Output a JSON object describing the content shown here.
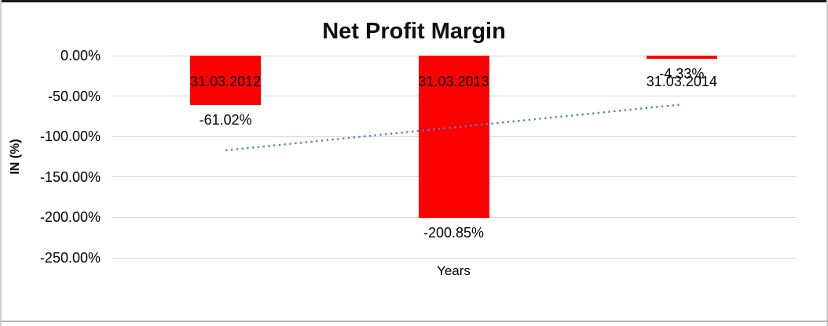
{
  "chart_data": {
    "type": "bar",
    "title": "Net Profit Margin",
    "xlabel": "Years",
    "ylabel": "IN (%)",
    "categories": [
      "31.03.2012",
      "31.03.2013",
      "31.03.2014"
    ],
    "series": [
      {
        "name": "Net Profit Margin",
        "values": [
          -61.02,
          -200.85,
          -4.33
        ]
      }
    ],
    "data_labels": [
      "-61.02%",
      "-200.85%",
      "-4.33%"
    ],
    "bar_color": "#fe0000",
    "ylim": [
      -250,
      0
    ],
    "yticks": [
      {
        "value": 0,
        "label": "0.00%"
      },
      {
        "value": -50,
        "label": "-50.00%"
      },
      {
        "value": -100,
        "label": "-100.00%"
      },
      {
        "value": -150,
        "label": "-150.00%"
      },
      {
        "value": -200,
        "label": "-200.00%"
      },
      {
        "value": -250,
        "label": "-250.00%"
      }
    ],
    "grid": true,
    "legend": "none",
    "trendline": {
      "type": "linear",
      "style": "dotted",
      "color": "#4f87c8",
      "start_value": -117.08,
      "end_value": -60.38
    }
  }
}
